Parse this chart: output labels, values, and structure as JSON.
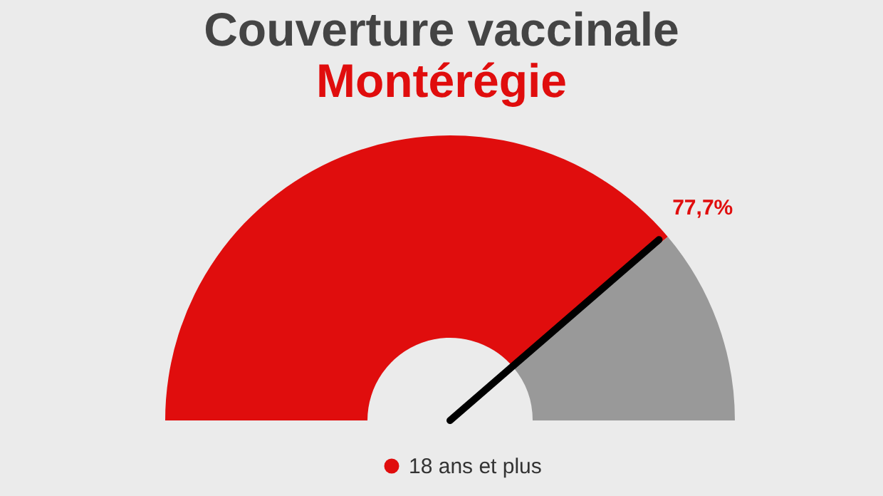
{
  "chart_data": {
    "type": "donut",
    "title": "Couverture vaccinale",
    "subtitle": "Montérégie",
    "categories": [
      "18 ans et plus",
      null
    ],
    "values": [
      77.7,
      22.3
    ],
    "colors": [
      "#e00d0d",
      "#999999"
    ],
    "value_labels": [
      "77,7%",
      null
    ],
    "needle": "18 ans et plus",
    "legend": "bottom"
  }
}
